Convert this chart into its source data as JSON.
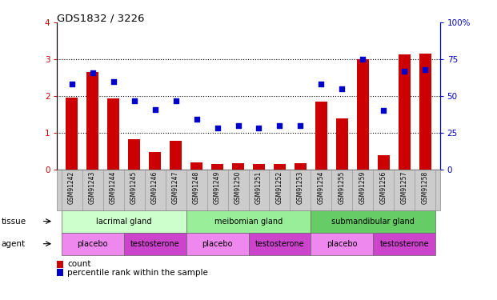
{
  "title": "GDS1832 / 3226",
  "samples": [
    "GSM91242",
    "GSM91243",
    "GSM91244",
    "GSM91245",
    "GSM91246",
    "GSM91247",
    "GSM91248",
    "GSM91249",
    "GSM91250",
    "GSM91251",
    "GSM91252",
    "GSM91253",
    "GSM91254",
    "GSM91255",
    "GSM91259",
    "GSM91256",
    "GSM91257",
    "GSM91258"
  ],
  "count_values": [
    1.95,
    2.65,
    1.93,
    0.82,
    0.48,
    0.78,
    0.2,
    0.15,
    0.17,
    0.15,
    0.15,
    0.18,
    1.85,
    1.38,
    3.0,
    0.38,
    3.13,
    3.15
  ],
  "percentile_values": [
    58,
    66,
    60,
    47,
    41,
    47,
    34,
    28,
    30,
    28,
    30,
    30,
    58,
    55,
    75,
    40,
    67,
    68
  ],
  "bar_color": "#cc0000",
  "dot_color": "#0000cc",
  "left_tick_color": "#cc0000",
  "right_tick_color": "#0000cc",
  "ylim_left": [
    0,
    4
  ],
  "ylim_right": [
    0,
    100
  ],
  "yticks_left": [
    0,
    1,
    2,
    3,
    4
  ],
  "yticks_right": [
    0,
    25,
    50,
    75,
    100
  ],
  "tissue_groups": [
    {
      "label": "lacrimal gland",
      "start": 0,
      "end": 6,
      "color": "#ccffcc"
    },
    {
      "label": "meibomian gland",
      "start": 6,
      "end": 12,
      "color": "#99ee99"
    },
    {
      "label": "submandibular gland",
      "start": 12,
      "end": 18,
      "color": "#66cc66"
    }
  ],
  "agent_groups": [
    {
      "label": "placebo",
      "start": 0,
      "end": 3,
      "color": "#ee88ee"
    },
    {
      "label": "testosterone",
      "start": 3,
      "end": 6,
      "color": "#cc44cc"
    },
    {
      "label": "placebo",
      "start": 6,
      "end": 9,
      "color": "#ee88ee"
    },
    {
      "label": "testosterone",
      "start": 9,
      "end": 12,
      "color": "#cc44cc"
    },
    {
      "label": "placebo",
      "start": 12,
      "end": 15,
      "color": "#ee88ee"
    },
    {
      "label": "testosterone",
      "start": 15,
      "end": 18,
      "color": "#cc44cc"
    }
  ],
  "legend_count_label": "count",
  "legend_pct_label": "percentile rank within the sample",
  "tissue_label": "tissue",
  "agent_label": "agent",
  "background_color": "#ffffff",
  "plot_bg_color": "#ffffff",
  "gridline_color": "#000000",
  "sample_label_bg": "#cccccc",
  "figure_width": 6.21,
  "figure_height": 3.75,
  "dpi": 100
}
